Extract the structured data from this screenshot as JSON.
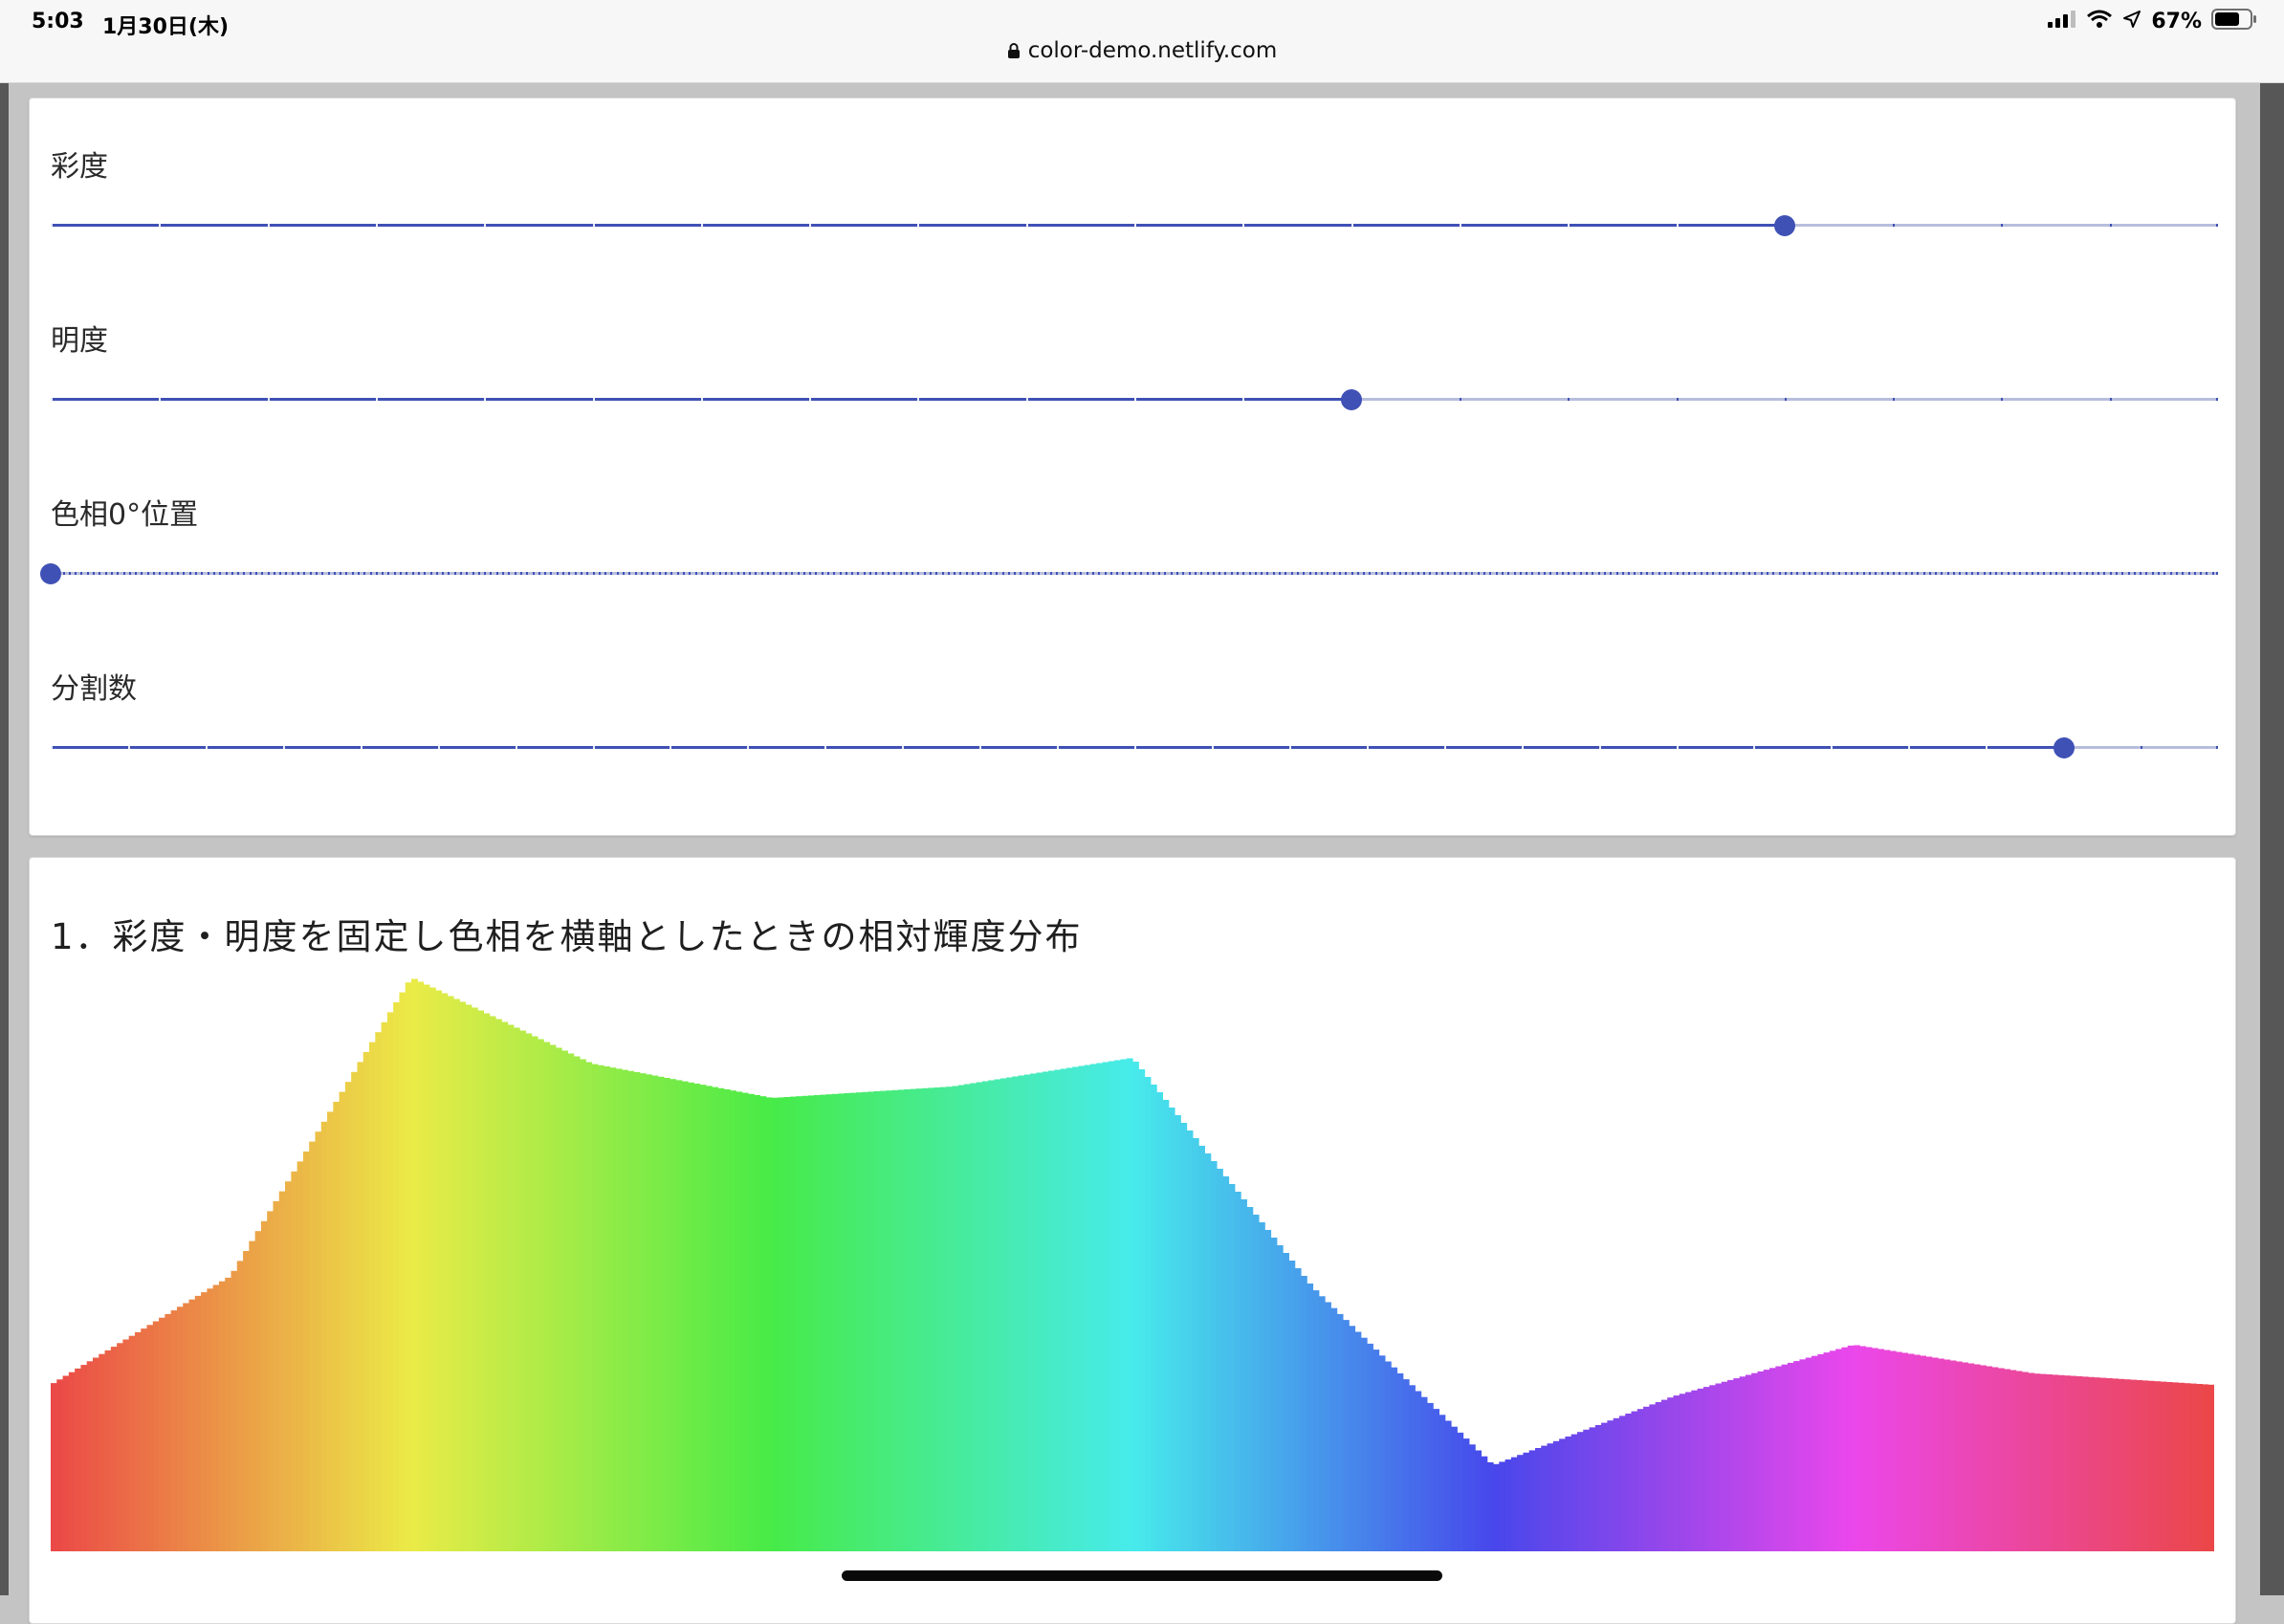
{
  "status_bar": {
    "time": "5:03",
    "date": "1月30日(木)",
    "url": "color-demo.netlify.com",
    "battery": "67%",
    "icons": [
      "signal-icon",
      "wifi-icon",
      "location-icon",
      "battery-icon"
    ]
  },
  "sliders": [
    {
      "label": "彩度",
      "value_fraction": 0.8,
      "steps": 20
    },
    {
      "label": "明度",
      "value_fraction": 0.6,
      "steps": 20
    },
    {
      "label": "色相0°位置",
      "value_fraction": 0.0,
      "steps": 360
    },
    {
      "label": "分割数",
      "value_fraction": 0.929,
      "steps": 28
    }
  ],
  "chart": {
    "title": "1．彩度・明度を固定し色相を横軸としたときの相対輝度分布"
  },
  "chart_data": {
    "type": "area",
    "title": "1．彩度・明度を固定し色相を横軸としたときの相対輝度分布",
    "xlabel": "",
    "ylabel": "",
    "x_unit": "hue_degrees",
    "xlim": [
      0,
      360
    ],
    "ylim": [
      0,
      1
    ],
    "grid": false,
    "fill": "colored by hue (HSL, saturation 0.8, lightness 0.6)",
    "x": [
      0,
      30,
      60,
      90,
      120,
      150,
      180,
      210,
      240,
      270,
      300,
      330,
      360
    ],
    "values": [
      0.29,
      0.48,
      1.0,
      0.85,
      0.79,
      0.81,
      0.86,
      0.46,
      0.15,
      0.27,
      0.36,
      0.31,
      0.29
    ]
  }
}
